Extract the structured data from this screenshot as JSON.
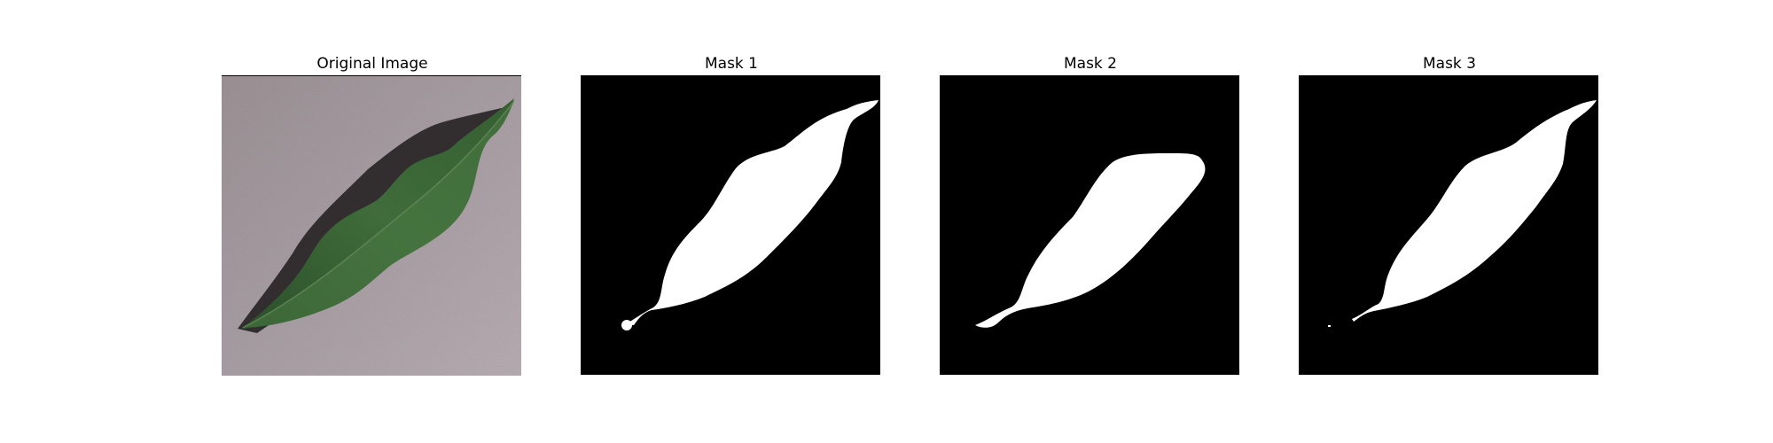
{
  "figure": {
    "panels": [
      {
        "title": "Original Image",
        "kind": "photo",
        "icon": "leaf-photo"
      },
      {
        "title": "Mask 1",
        "kind": "mask",
        "icon": "leaf-mask"
      },
      {
        "title": "Mask 2",
        "kind": "mask",
        "icon": "leaf-mask"
      },
      {
        "title": "Mask 3",
        "kind": "mask",
        "icon": "leaf-mask"
      }
    ]
  },
  "colors": {
    "background": "#ffffff",
    "mask_bg": "#000000",
    "mask_fg": "#ffffff",
    "photo_bg": "#a89ea4",
    "leaf_dark": "#1f3a20",
    "leaf_mid": "#3c6b38",
    "leaf_light": "#4f7d49",
    "shadow": "#2a2528"
  }
}
